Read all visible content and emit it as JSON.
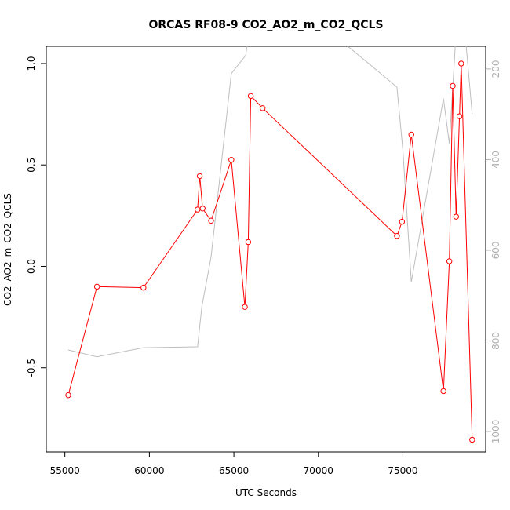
{
  "chart_data": {
    "type": "line",
    "title": "ORCAS RF08-9 CO2_AO2_m_CO2_QCLS",
    "xlabel": "UTC Seconds",
    "ylabel": "CO2_AO2_m_CO2_QCLS",
    "xlim": [
      53900,
      79900
    ],
    "ylim": [
      -0.915,
      1.085
    ],
    "xticks": [
      55000,
      60000,
      65000,
      70000,
      75000
    ],
    "yticks": [
      -0.5,
      0.0,
      0.5,
      1.0
    ],
    "ytick_labels": [
      "-0.5",
      "0.0",
      "0.5",
      "1.0"
    ],
    "right_axis": {
      "lim": [
        1045,
        150
      ],
      "ticks": [
        200,
        400,
        600,
        800,
        1000
      ]
    },
    "series": [
      {
        "color": "#ff0000",
        "marker": "open-circle",
        "x": [
          55200,
          56900,
          59650,
          62850,
          62980,
          63150,
          63650,
          64850,
          65650,
          65850,
          66000,
          66700,
          74650,
          74950,
          75500,
          77400,
          77750,
          77950,
          78150,
          78350,
          78450,
          79100
        ],
        "y": [
          -0.635,
          -0.1,
          -0.105,
          0.28,
          0.445,
          0.285,
          0.225,
          0.525,
          -0.2,
          0.12,
          0.84,
          0.78,
          0.15,
          0.22,
          0.65,
          -0.615,
          0.025,
          0.89,
          0.245,
          0.74,
          1.0,
          -0.855
        ]
      },
      {
        "color": "#bebebe",
        "axis": "right",
        "x": [
          55200,
          56900,
          59650,
          62850,
          63100,
          63650,
          64850,
          65700,
          65850,
          71100,
          74650,
          75000,
          75500,
          77400,
          77750,
          78100,
          78450,
          78750,
          79100
        ],
        "y": [
          820,
          835,
          815,
          813,
          725,
          615,
          210,
          170,
          130,
          130,
          240,
          380,
          670,
          265,
          365,
          150,
          90,
          150,
          300
        ]
      }
    ]
  }
}
